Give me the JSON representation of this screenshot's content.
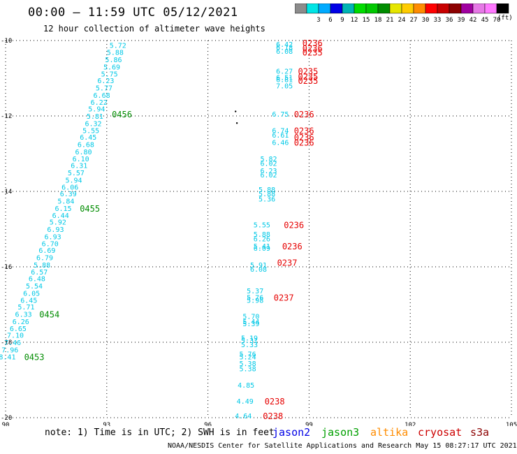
{
  "title": "00:00 – 11:59 UTC 05/12/2021",
  "subtitle": "12 hour collection of altimeter wave heights",
  "note": "note: 1) Time is in UTC; 2) SWH is in feet",
  "credit": "NOAA/NESDIS Center for Satellite Applications and Research    May 15 08:27:17 UTC 2021",
  "legend": {
    "unit": "(ft)",
    "bins": [
      {
        "label": "",
        "color": "#8c8c8c"
      },
      {
        "label": "3",
        "color": "#00e5e5"
      },
      {
        "label": "6",
        "color": "#00aaff"
      },
      {
        "label": "9",
        "color": "#0000e6"
      },
      {
        "label": "12",
        "color": "#00b4b4"
      },
      {
        "label": "15",
        "color": "#00dc00"
      },
      {
        "label": "18",
        "color": "#00c800"
      },
      {
        "label": "21",
        "color": "#008c00"
      },
      {
        "label": "24",
        "color": "#e6e600"
      },
      {
        "label": "27",
        "color": "#ffcc00"
      },
      {
        "label": "30",
        "color": "#ff8c00"
      },
      {
        "label": "33",
        "color": "#ff0000"
      },
      {
        "label": "36",
        "color": "#c80000"
      },
      {
        "label": "39",
        "color": "#8c0000"
      },
      {
        "label": "42",
        "color": "#a000a0"
      },
      {
        "label": "45",
        "color": "#e678e6"
      },
      {
        "label": "70",
        "color": "#ff78ff"
      },
      {
        "label": "",
        "color": "#000000"
      }
    ]
  },
  "missions": [
    {
      "name": "jason2",
      "color": "#0000e6"
    },
    {
      "name": "jason3",
      "color": "#00a000"
    },
    {
      "name": "altika",
      "color": "#ff8c00"
    },
    {
      "name": "cryosat",
      "color": "#cc0000"
    },
    {
      "name": "s3a",
      "color": "#8c0000"
    }
  ],
  "chart_data": {
    "type": "scatter",
    "xlim": [
      90,
      105
    ],
    "ylim": [
      -20,
      -10
    ],
    "xticks": [
      "90",
      "93",
      "96",
      "99",
      "102",
      "105"
    ],
    "yticks": [
      "-10",
      "-12",
      "-14",
      "-16",
      "-18",
      "-20"
    ],
    "grid": true,
    "wave_color": "#00c8e6",
    "time_color_left": "#008c00",
    "time_color_right": "#e60000",
    "left_track": {
      "points": [
        {
          "x": 93.58,
          "y": -10.12,
          "v": "5.72"
        },
        {
          "x": 93.5,
          "y": -10.31,
          "v": "5.88"
        },
        {
          "x": 93.45,
          "y": -10.5,
          "v": "5.86"
        },
        {
          "x": 93.4,
          "y": -10.69,
          "v": "5.69"
        },
        {
          "x": 93.33,
          "y": -10.88,
          "v": "5.75"
        },
        {
          "x": 93.22,
          "y": -11.06,
          "v": "6.23"
        },
        {
          "x": 93.17,
          "y": -11.25,
          "v": "5.77"
        },
        {
          "x": 93.1,
          "y": -11.44,
          "v": "6.68"
        },
        {
          "x": 93.02,
          "y": -11.63,
          "v": "6.22"
        },
        {
          "x": 92.95,
          "y": -11.81,
          "v": "5.94"
        },
        {
          "x": 92.9,
          "y": -12.0,
          "v": "5.81"
        },
        {
          "x": 92.85,
          "y": -12.19,
          "v": "6.32"
        },
        {
          "x": 92.78,
          "y": -12.38,
          "v": "5.55"
        },
        {
          "x": 92.7,
          "y": -12.56,
          "v": "6.45"
        },
        {
          "x": 92.63,
          "y": -12.75,
          "v": "6.68"
        },
        {
          "x": 92.56,
          "y": -12.94,
          "v": "6.80"
        },
        {
          "x": 92.48,
          "y": -13.13,
          "v": "6.10"
        },
        {
          "x": 92.43,
          "y": -13.31,
          "v": "6.31"
        },
        {
          "x": 92.34,
          "y": -13.5,
          "v": "5.57"
        },
        {
          "x": 92.27,
          "y": -13.69,
          "v": "5.94"
        },
        {
          "x": 92.16,
          "y": -13.88,
          "v": "6.06"
        },
        {
          "x": 92.11,
          "y": -14.06,
          "v": "6.39"
        },
        {
          "x": 92.04,
          "y": -14.25,
          "v": "5.84"
        },
        {
          "x": 91.96,
          "y": -14.44,
          "v": "6.15"
        },
        {
          "x": 91.88,
          "y": -14.63,
          "v": "6.44"
        },
        {
          "x": 91.8,
          "y": -14.81,
          "v": "5.92"
        },
        {
          "x": 91.73,
          "y": -15.0,
          "v": "6.93"
        },
        {
          "x": 91.65,
          "y": -15.19,
          "v": "6.93"
        },
        {
          "x": 91.57,
          "y": -15.38,
          "v": "6.70"
        },
        {
          "x": 91.48,
          "y": -15.56,
          "v": "6.69"
        },
        {
          "x": 91.41,
          "y": -15.75,
          "v": "6.79"
        },
        {
          "x": 91.33,
          "y": -15.94,
          "v": "5.88"
        },
        {
          "x": 91.25,
          "y": -16.13,
          "v": "6.57"
        },
        {
          "x": 91.18,
          "y": -16.31,
          "v": "6.48"
        },
        {
          "x": 91.1,
          "y": -16.5,
          "v": "5.54"
        },
        {
          "x": 91.02,
          "y": -16.69,
          "v": "6.05"
        },
        {
          "x": 90.94,
          "y": -16.88,
          "v": "6.45"
        },
        {
          "x": 90.86,
          "y": -17.06,
          "v": "5.71"
        },
        {
          "x": 90.78,
          "y": -17.25,
          "v": "6.33"
        },
        {
          "x": 90.7,
          "y": -17.44,
          "v": "6.26"
        },
        {
          "x": 90.62,
          "y": -17.63,
          "v": "6.65"
        },
        {
          "x": 90.54,
          "y": -17.81,
          "v": "7.10"
        },
        {
          "x": 90.46,
          "y": -18.0,
          "v": "7.46"
        },
        {
          "x": 90.38,
          "y": -18.19,
          "v": "7.96"
        },
        {
          "x": 90.3,
          "y": -18.38,
          "v": "8.41"
        }
      ],
      "times": [
        {
          "x": 93.45,
          "y": -11.94,
          "t": "0456"
        },
        {
          "x": 92.5,
          "y": -14.44,
          "t": "0455"
        },
        {
          "x": 91.3,
          "y": -17.25,
          "t": "0454"
        },
        {
          "x": 90.85,
          "y": -18.38,
          "t": "0453"
        }
      ]
    },
    "right_track": {
      "points": [
        {
          "x": 98.52,
          "y": -10.09,
          "v": "6.42"
        },
        {
          "x": 98.52,
          "y": -10.18,
          "v": "6.18"
        },
        {
          "x": 98.52,
          "y": -10.28,
          "v": "6.08"
        },
        {
          "x": 98.52,
          "y": -10.81,
          "v": "6.27"
        },
        {
          "x": 98.52,
          "y": -10.97,
          "v": "6.51"
        },
        {
          "x": 98.52,
          "y": -11.03,
          "v": "6.81"
        },
        {
          "x": 98.52,
          "y": -11.19,
          "v": "7.05"
        },
        {
          "x": 98.4,
          "y": -11.94,
          "v": "6.75"
        },
        {
          "x": 98.4,
          "y": -12.38,
          "v": "6.74"
        },
        {
          "x": 98.4,
          "y": -12.5,
          "v": "6.61"
        },
        {
          "x": 98.4,
          "y": -12.69,
          "v": "6.46"
        },
        {
          "x": 98.05,
          "y": -13.13,
          "v": "5.82"
        },
        {
          "x": 98.05,
          "y": -13.25,
          "v": "6.02"
        },
        {
          "x": 98.05,
          "y": -13.44,
          "v": "6.23"
        },
        {
          "x": 98.05,
          "y": -13.56,
          "v": "6.02"
        },
        {
          "x": 98.0,
          "y": -13.94,
          "v": "5.88"
        },
        {
          "x": 98.0,
          "y": -14.06,
          "v": "5.88"
        },
        {
          "x": 98.0,
          "y": -14.19,
          "v": "5.36"
        },
        {
          "x": 97.85,
          "y": -14.88,
          "v": "5.55"
        },
        {
          "x": 97.85,
          "y": -15.13,
          "v": "5.88"
        },
        {
          "x": 97.85,
          "y": -15.25,
          "v": "6.26"
        },
        {
          "x": 97.85,
          "y": -15.44,
          "v": "5.41"
        },
        {
          "x": 97.85,
          "y": -15.5,
          "v": "6.09"
        },
        {
          "x": 97.75,
          "y": -15.94,
          "v": "5.91"
        },
        {
          "x": 97.75,
          "y": -16.06,
          "v": "6.08"
        },
        {
          "x": 97.65,
          "y": -16.63,
          "v": "5.37"
        },
        {
          "x": 97.65,
          "y": -16.81,
          "v": "5.76"
        },
        {
          "x": 97.65,
          "y": -16.88,
          "v": "5.98"
        },
        {
          "x": 97.53,
          "y": -17.31,
          "v": "5.70"
        },
        {
          "x": 97.53,
          "y": -17.44,
          "v": "5.44"
        },
        {
          "x": 97.53,
          "y": -17.5,
          "v": "5.39"
        },
        {
          "x": 97.48,
          "y": -17.88,
          "v": "5.19"
        },
        {
          "x": 97.48,
          "y": -17.94,
          "v": "5.31"
        },
        {
          "x": 97.48,
          "y": -18.06,
          "v": "5.33"
        },
        {
          "x": 97.43,
          "y": -18.31,
          "v": "5.76"
        },
        {
          "x": 97.43,
          "y": -18.38,
          "v": "5.24"
        },
        {
          "x": 97.43,
          "y": -18.56,
          "v": "5.38"
        },
        {
          "x": 97.43,
          "y": -18.69,
          "v": "5.38"
        },
        {
          "x": 97.38,
          "y": -19.13,
          "v": "4.85"
        },
        {
          "x": 97.35,
          "y": -19.56,
          "v": "4.49"
        },
        {
          "x": 97.3,
          "y": -19.94,
          "v": "4.64"
        }
      ],
      "times": [
        {
          "x": 99.1,
          "y": -10.06,
          "t": "0236"
        },
        {
          "x": 99.1,
          "y": -10.19,
          "t": "0236"
        },
        {
          "x": 99.1,
          "y": -10.31,
          "t": "0235"
        },
        {
          "x": 98.97,
          "y": -10.81,
          "t": "0235"
        },
        {
          "x": 98.97,
          "y": -10.94,
          "t": "0235"
        },
        {
          "x": 98.97,
          "y": -11.06,
          "t": "0235"
        },
        {
          "x": 98.85,
          "y": -11.94,
          "t": "0236"
        },
        {
          "x": 98.85,
          "y": -12.38,
          "t": "0236"
        },
        {
          "x": 98.85,
          "y": -12.56,
          "t": "0236"
        },
        {
          "x": 98.85,
          "y": -12.69,
          "t": "0236"
        },
        {
          "x": 98.55,
          "y": -14.88,
          "t": "0236"
        },
        {
          "x": 98.5,
          "y": -15.44,
          "t": "0236"
        },
        {
          "x": 98.35,
          "y": -15.88,
          "t": "0237"
        },
        {
          "x": 98.25,
          "y": -16.81,
          "t": "0237"
        },
        {
          "x": 97.98,
          "y": -19.56,
          "t": "0238"
        },
        {
          "x": 97.93,
          "y": -19.94,
          "t": "0238"
        }
      ]
    },
    "land_marks": [
      {
        "x": 96.82,
        "y": -11.88
      },
      {
        "x": 96.86,
        "y": -12.19
      }
    ]
  }
}
